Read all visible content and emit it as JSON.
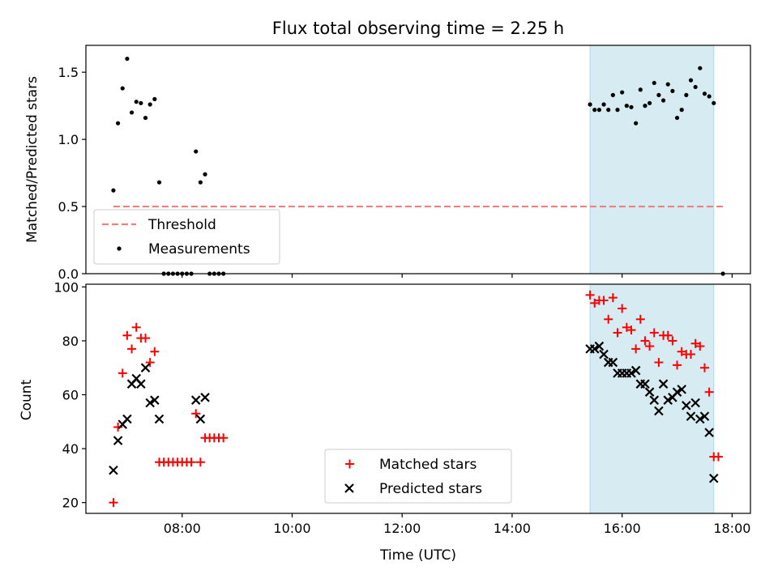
{
  "chart_data": [
    {
      "type": "scatter",
      "title": "Flux total observing time = 2.25 h",
      "xlabel": "",
      "ylabel": "Matched/Predicted stars",
      "xlim": [
        "06:15",
        "18:20"
      ],
      "ylim": [
        0,
        1.7
      ],
      "yticks": [
        0.0,
        0.5,
        1.0,
        1.5
      ],
      "ytick_labels": [
        "0.0",
        "0.5",
        "1.0",
        "1.5"
      ],
      "xticks": [
        "08:00",
        "10:00",
        "12:00",
        "14:00",
        "16:00",
        "18:00"
      ],
      "show_xtick_labels": false,
      "grid": false,
      "highlight_span": {
        "x": [
          "15:25",
          "17:40"
        ],
        "color": "#add8e6"
      },
      "threshold": {
        "name": "Threshold",
        "y": 0.5,
        "x": [
          "06:45",
          "17:50"
        ],
        "color": "#f08080",
        "style": "dashed"
      },
      "legend": {
        "placement": "lower-left",
        "entries": [
          "Threshold",
          "Measurements"
        ]
      },
      "series": [
        {
          "name": "Measurements",
          "marker": "dot",
          "color": "#000000",
          "points": [
            [
              "06:45",
              0.62
            ],
            [
              "06:50",
              1.12
            ],
            [
              "06:55",
              1.38
            ],
            [
              "07:00",
              1.6
            ],
            [
              "07:05",
              1.2
            ],
            [
              "07:10",
              1.28
            ],
            [
              "07:15",
              1.27
            ],
            [
              "07:20",
              1.16
            ],
            [
              "07:25",
              1.26
            ],
            [
              "07:30",
              1.3
            ],
            [
              "07:35",
              0.68
            ],
            [
              "07:40",
              0.0
            ],
            [
              "07:45",
              0.0
            ],
            [
              "07:50",
              0.0
            ],
            [
              "07:55",
              0.0
            ],
            [
              "08:00",
              0.0
            ],
            [
              "08:05",
              0.0
            ],
            [
              "08:10",
              0.0
            ],
            [
              "08:15",
              0.91
            ],
            [
              "08:20",
              0.68
            ],
            [
              "08:25",
              0.74
            ],
            [
              "08:30",
              0.0
            ],
            [
              "08:35",
              0.0
            ],
            [
              "08:40",
              0.0
            ],
            [
              "08:45",
              0.0
            ],
            [
              "15:25",
              1.26
            ],
            [
              "15:30",
              1.22
            ],
            [
              "15:35",
              1.22
            ],
            [
              "15:40",
              1.26
            ],
            [
              "15:45",
              1.22
            ],
            [
              "15:50",
              1.33
            ],
            [
              "15:55",
              1.22
            ],
            [
              "16:00",
              1.35
            ],
            [
              "16:05",
              1.25
            ],
            [
              "16:10",
              1.24
            ],
            [
              "16:15",
              1.12
            ],
            [
              "16:20",
              1.37
            ],
            [
              "16:25",
              1.25
            ],
            [
              "16:30",
              1.27
            ],
            [
              "16:35",
              1.42
            ],
            [
              "16:40",
              1.33
            ],
            [
              "16:45",
              1.29
            ],
            [
              "16:50",
              1.41
            ],
            [
              "16:55",
              1.36
            ],
            [
              "17:00",
              1.16
            ],
            [
              "17:05",
              1.22
            ],
            [
              "17:10",
              1.33
            ],
            [
              "17:15",
              1.44
            ],
            [
              "17:20",
              1.39
            ],
            [
              "17:25",
              1.53
            ],
            [
              "17:30",
              1.34
            ],
            [
              "17:35",
              1.32
            ],
            [
              "17:40",
              1.27
            ],
            [
              "17:50",
              0.0
            ]
          ]
        }
      ]
    },
    {
      "type": "scatter",
      "title": "",
      "xlabel": "Time (UTC)",
      "ylabel": "Count",
      "xlim": [
        "06:15",
        "18:20"
      ],
      "ylim": [
        16,
        101
      ],
      "yticks": [
        20,
        40,
        60,
        80,
        100
      ],
      "ytick_labels": [
        "20",
        "40",
        "60",
        "80",
        "100"
      ],
      "xticks": [
        "08:00",
        "10:00",
        "12:00",
        "14:00",
        "16:00",
        "18:00"
      ],
      "xtick_labels": [
        "08:00",
        "10:00",
        "12:00",
        "14:00",
        "16:00",
        "18:00"
      ],
      "grid": false,
      "highlight_span": {
        "x": [
          "15:25",
          "17:40"
        ],
        "color": "#add8e6"
      },
      "legend": {
        "placement": "lower-center",
        "entries": [
          "Matched stars",
          "Predicted stars"
        ]
      },
      "series": [
        {
          "name": "Matched stars",
          "marker": "plus",
          "color": "#ff0000",
          "points": [
            [
              "06:45",
              20
            ],
            [
              "06:50",
              48
            ],
            [
              "06:55",
              68
            ],
            [
              "07:00",
              82
            ],
            [
              "07:05",
              77
            ],
            [
              "07:10",
              85
            ],
            [
              "07:15",
              81
            ],
            [
              "07:20",
              81
            ],
            [
              "07:25",
              72
            ],
            [
              "07:30",
              76
            ],
            [
              "07:35",
              35
            ],
            [
              "07:40",
              35
            ],
            [
              "07:45",
              35
            ],
            [
              "07:50",
              35
            ],
            [
              "07:55",
              35
            ],
            [
              "08:00",
              35
            ],
            [
              "08:05",
              35
            ],
            [
              "08:10",
              35
            ],
            [
              "08:15",
              53
            ],
            [
              "08:20",
              35
            ],
            [
              "08:25",
              44
            ],
            [
              "08:30",
              44
            ],
            [
              "08:35",
              44
            ],
            [
              "08:40",
              44
            ],
            [
              "08:45",
              44
            ],
            [
              "15:25",
              97
            ],
            [
              "15:30",
              94
            ],
            [
              "15:35",
              95
            ],
            [
              "15:40",
              95
            ],
            [
              "15:45",
              88
            ],
            [
              "15:50",
              96
            ],
            [
              "15:55",
              83
            ],
            [
              "16:00",
              92
            ],
            [
              "16:05",
              85
            ],
            [
              "16:10",
              84
            ],
            [
              "16:15",
              77
            ],
            [
              "16:20",
              88
            ],
            [
              "16:25",
              80
            ],
            [
              "16:30",
              78
            ],
            [
              "16:35",
              83
            ],
            [
              "16:40",
              72
            ],
            [
              "16:45",
              82
            ],
            [
              "16:50",
              82
            ],
            [
              "16:55",
              80
            ],
            [
              "17:00",
              71
            ],
            [
              "17:05",
              76
            ],
            [
              "17:10",
              75
            ],
            [
              "17:15",
              75
            ],
            [
              "17:20",
              79
            ],
            [
              "17:25",
              78
            ],
            [
              "17:30",
              70
            ],
            [
              "17:35",
              61
            ],
            [
              "17:40",
              37
            ],
            [
              "17:45",
              37
            ]
          ]
        },
        {
          "name": "Predicted stars",
          "marker": "x",
          "color": "#000000",
          "points": [
            [
              "06:45",
              32
            ],
            [
              "06:50",
              43
            ],
            [
              "06:55",
              49
            ],
            [
              "07:00",
              51
            ],
            [
              "07:05",
              64
            ],
            [
              "07:10",
              66
            ],
            [
              "07:15",
              64
            ],
            [
              "07:20",
              70
            ],
            [
              "07:25",
              57
            ],
            [
              "07:30",
              58
            ],
            [
              "07:35",
              51
            ],
            [
              "08:15",
              58
            ],
            [
              "08:20",
              51
            ],
            [
              "08:25",
              59
            ],
            [
              "15:25",
              77
            ],
            [
              "15:30",
              77
            ],
            [
              "15:35",
              78
            ],
            [
              "15:40",
              75
            ],
            [
              "15:45",
              72
            ],
            [
              "15:50",
              72
            ],
            [
              "15:55",
              68
            ],
            [
              "16:00",
              68
            ],
            [
              "16:05",
              68
            ],
            [
              "16:10",
              68
            ],
            [
              "16:15",
              69
            ],
            [
              "16:20",
              64
            ],
            [
              "16:25",
              64
            ],
            [
              "16:30",
              61
            ],
            [
              "16:35",
              58
            ],
            [
              "16:40",
              54
            ],
            [
              "16:45",
              64
            ],
            [
              "16:50",
              58
            ],
            [
              "16:55",
              59
            ],
            [
              "17:00",
              61
            ],
            [
              "17:05",
              62
            ],
            [
              "17:10",
              56
            ],
            [
              "17:15",
              52
            ],
            [
              "17:20",
              57
            ],
            [
              "17:25",
              51
            ],
            [
              "17:30",
              52
            ],
            [
              "17:35",
              46
            ],
            [
              "17:40",
              29
            ]
          ]
        }
      ]
    }
  ]
}
